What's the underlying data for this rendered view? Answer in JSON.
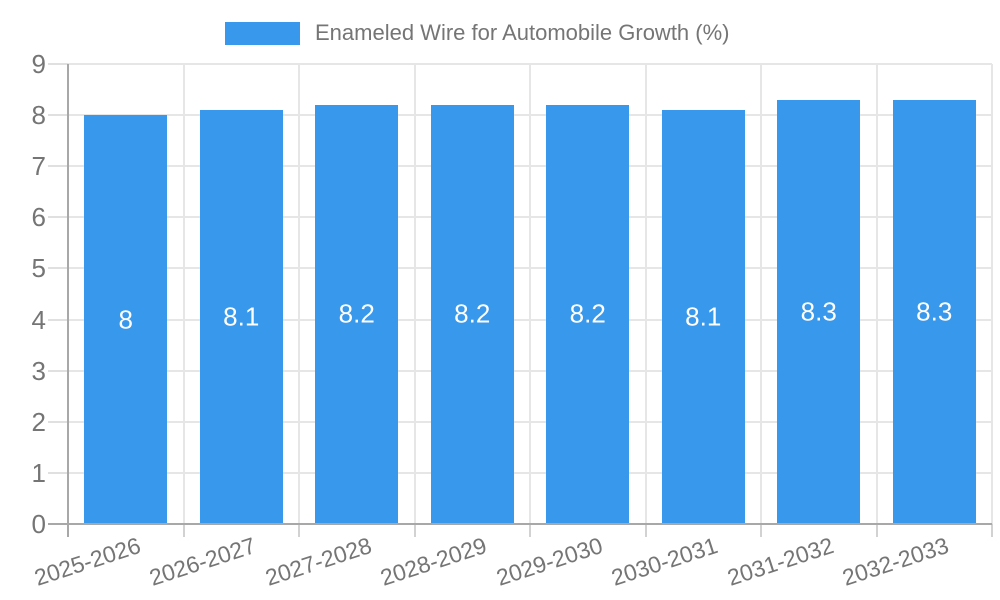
{
  "chart_data": {
    "type": "bar",
    "title": "",
    "legend": {
      "label": "Enameled Wire for Automobile Growth (%)",
      "position": "top"
    },
    "categories": [
      "2025-2026",
      "2026-2027",
      "2027-2028",
      "2028-2029",
      "2029-2030",
      "2030-2031",
      "2031-2032",
      "2032-2033"
    ],
    "series": [
      {
        "name": "Enameled Wire for Automobile Growth (%)",
        "values": [
          8,
          8.1,
          8.2,
          8.2,
          8.2,
          8.1,
          8.3,
          8.3
        ]
      }
    ],
    "data_labels": [
      "8",
      "8.1",
      "8.2",
      "8.2",
      "8.2",
      "8.1",
      "8.3",
      "8.3"
    ],
    "xlabel": "",
    "ylabel": "",
    "ylim": [
      0,
      9
    ],
    "y_ticks": [
      0,
      1,
      2,
      3,
      4,
      5,
      6,
      7,
      8,
      9
    ],
    "grid": true,
    "colors": {
      "bar": "#3898ec",
      "bar_label": "#ffffff",
      "axis_text": "#757575",
      "gridline": "#e6e6e6",
      "axis_line": "#a8a8a8",
      "tick": "#d2d2d2",
      "background": "#ffffff"
    }
  }
}
